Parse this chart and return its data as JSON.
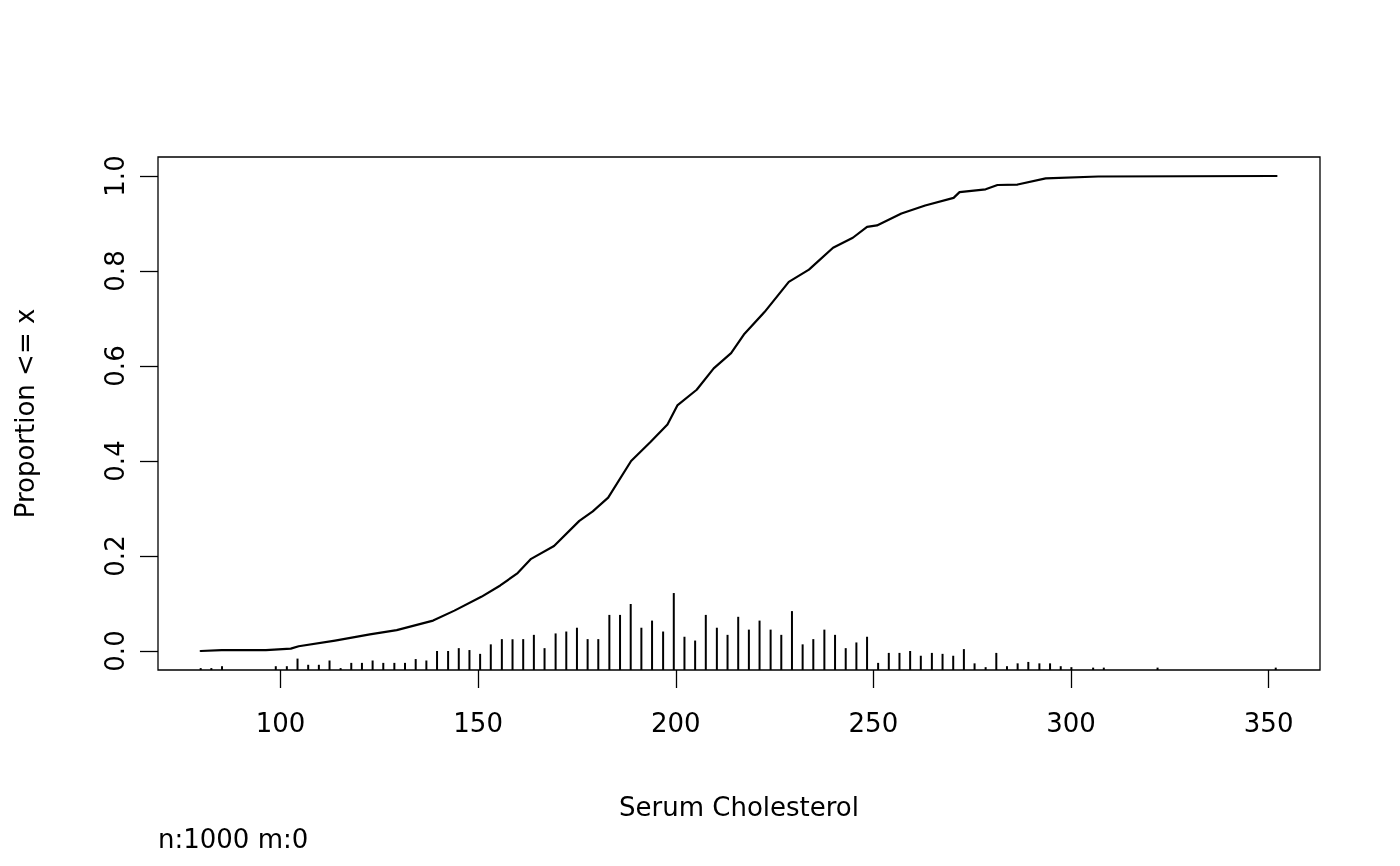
{
  "chart_data": {
    "type": "line",
    "xlabel": "Serum Cholesterol",
    "ylabel": "Proportion <= x",
    "marker": "none",
    "xlim": [
      69,
      363
    ],
    "xticks": [
      100,
      150,
      200,
      250,
      300,
      350
    ],
    "ylim": [
      -0.04,
      1.04
    ],
    "yticks": [
      {
        "value": 0,
        "label": "0.0"
      },
      {
        "value": 0.2,
        "label": "0.2"
      },
      {
        "value": 0.4,
        "label": "0.4"
      },
      {
        "value": 0.6,
        "label": "0.6"
      },
      {
        "value": 0.8,
        "label": "0.8"
      },
      {
        "value": 1,
        "label": "1.0"
      }
    ],
    "annotations": [
      "n:1000 m:0"
    ],
    "series": [
      {
        "color": "#000000",
        "x": [
          79.8,
          85.1,
          96.3,
          102.6,
          104.6,
          113.8,
          122.6,
          129.4,
          138.6,
          144.0,
          150.8,
          155.6,
          160.0,
          163.4,
          169.2,
          175.6,
          179.0,
          182.9,
          188.7,
          193.6,
          197.9,
          200.4,
          205.3,
          209.6,
          214.0,
          217.4,
          222.5,
          228.6,
          233.7,
          239.8,
          244.8,
          248.4,
          250.9,
          257.1,
          263.1,
          270.3,
          271.8,
          278.4,
          281.4,
          286.5,
          293.6,
          306.9,
          352.0
        ],
        "values": [
          0.0,
          0.002,
          0.002,
          0.005,
          0.01,
          0.022,
          0.035,
          0.044,
          0.064,
          0.085,
          0.114,
          0.138,
          0.164,
          0.194,
          0.221,
          0.274,
          0.294,
          0.323,
          0.4,
          0.44,
          0.477,
          0.517,
          0.55,
          0.595,
          0.627,
          0.668,
          0.714,
          0.777,
          0.803,
          0.849,
          0.87,
          0.893,
          0.896,
          0.921,
          0.938,
          0.954,
          0.966,
          0.972,
          0.981,
          0.982,
          0.995,
          0.999,
          1.0
        ]
      },
      {
        "type": "bar",
        "color": "#000000",
        "x": [
          79.8,
          82.5,
          85.2,
          98.8,
          101.6,
          104.3,
          107.0,
          109.7,
          112.4,
          115.2,
          117.9,
          120.6,
          123.3,
          126.0,
          128.8,
          131.5,
          134.2,
          136.9,
          139.6,
          142.4,
          145.1,
          147.8,
          150.5,
          153.2,
          156.0,
          158.7,
          161.4,
          164.1,
          166.8,
          169.6,
          172.3,
          175.0,
          177.7,
          180.4,
          183.2,
          185.9,
          188.6,
          191.3,
          194.0,
          196.8,
          199.5,
          202.2,
          204.9,
          207.6,
          210.4,
          213.1,
          215.8,
          218.5,
          221.2,
          224.0,
          226.7,
          229.4,
          232.1,
          234.8,
          237.6,
          240.3,
          243.0,
          245.7,
          248.4,
          251.2,
          253.9,
          256.6,
          259.3,
          262.0,
          264.8,
          267.5,
          270.2,
          272.9,
          275.6,
          278.4,
          281.1,
          283.8,
          286.5,
          289.2,
          292.0,
          294.7,
          297.4,
          300.1,
          305.6,
          308.3,
          321.9,
          351.8
        ],
        "values": [
          0.004,
          0.004,
          0.008,
          0.008,
          0.008,
          0.024,
          0.011,
          0.011,
          0.02,
          0.004,
          0.015,
          0.015,
          0.02,
          0.015,
          0.015,
          0.015,
          0.023,
          0.02,
          0.04,
          0.04,
          0.046,
          0.042,
          0.034,
          0.054,
          0.065,
          0.065,
          0.065,
          0.074,
          0.046,
          0.077,
          0.081,
          0.089,
          0.065,
          0.065,
          0.116,
          0.116,
          0.139,
          0.089,
          0.104,
          0.081,
          0.162,
          0.07,
          0.062,
          0.116,
          0.089,
          0.074,
          0.112,
          0.085,
          0.104,
          0.085,
          0.074,
          0.124,
          0.054,
          0.065,
          0.085,
          0.074,
          0.046,
          0.058,
          0.07,
          0.015,
          0.036,
          0.036,
          0.04,
          0.03,
          0.036,
          0.034,
          0.03,
          0.044,
          0.014,
          0.006,
          0.036,
          0.008,
          0.014,
          0.017,
          0.014,
          0.014,
          0.008,
          0.006,
          0.005,
          0.005,
          0.005,
          0.005
        ],
        "base": [
          -0.04,
          -0.04,
          -0.04,
          -0.04,
          -0.04,
          -0.04,
          -0.04,
          -0.04,
          -0.04,
          -0.04,
          -0.04,
          -0.04,
          -0.04,
          -0.04,
          -0.04,
          -0.04,
          -0.04,
          -0.04,
          -0.04,
          -0.04,
          -0.04,
          -0.04,
          -0.04,
          -0.04,
          -0.04,
          -0.04,
          -0.04,
          -0.04,
          -0.04,
          -0.04,
          -0.04,
          -0.04,
          -0.04,
          -0.04,
          -0.04,
          -0.04,
          -0.04,
          -0.04,
          -0.04,
          -0.04,
          -0.04,
          -0.04,
          -0.04,
          -0.04,
          -0.04,
          -0.04,
          -0.04,
          -0.04,
          -0.04,
          -0.04,
          -0.04,
          -0.04,
          -0.04,
          -0.04,
          -0.04,
          -0.04,
          -0.04,
          -0.04,
          -0.04,
          -0.04,
          -0.04,
          -0.04,
          -0.04,
          -0.04,
          -0.04,
          -0.04,
          -0.04,
          -0.04,
          -0.04,
          -0.04,
          -0.04,
          -0.04,
          -0.04,
          -0.04,
          -0.04,
          -0.04,
          -0.04,
          -0.04,
          -0.04,
          -0.04,
          -0.04,
          -0.04
        ]
      }
    ]
  }
}
